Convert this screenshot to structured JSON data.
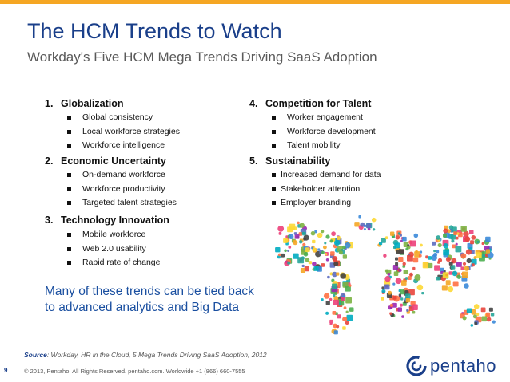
{
  "title": "The HCM Trends to Watch",
  "subtitle": "Workday's Five HCM Mega Trends Driving SaaS Adoption",
  "trends": [
    {
      "number": "1.",
      "title": "Globalization",
      "bullets": [
        "Global consistency",
        "Local workforce strategies",
        "Workforce intelligence"
      ]
    },
    {
      "number": "2.",
      "title": "Economic Uncertainty",
      "bullets": [
        "On-demand workforce",
        "Workforce productivity",
        "Targeted talent strategies"
      ]
    },
    {
      "number": "3.",
      "title": "Technology Innovation",
      "bullets": [
        "Mobile workforce",
        "Web 2.0 usability",
        "Rapid rate of change"
      ]
    },
    {
      "number": "4.",
      "title": "Competition for Talent",
      "bullets": [
        "Worker engagement",
        "Workforce development",
        "Talent mobility"
      ]
    },
    {
      "number": "5.",
      "title": "Sustainability",
      "bullets": [
        "Increased demand for data",
        "Stakeholder attention",
        "Employer branding"
      ]
    }
  ],
  "callout": {
    "line1": "Many of these trends can be tied back",
    "line2": "to advanced analytics and Big Data"
  },
  "source": {
    "label": "Source",
    "text": ": Workday, HR in the Cloud, 5 Mega Trends Driving SaaS Adoption, 2012"
  },
  "footer": "© 2013, Pentaho. All Rights Reserved. pentaho.com. Worldwide +1 (866) 660-7555",
  "slide_number": "9",
  "logo": {
    "text": "pentaho",
    "icon": "pentaho-swirl-icon"
  },
  "colors": {
    "accent": "#f5a623",
    "title": "#1a3f8a",
    "callout": "#1a4fa0"
  }
}
